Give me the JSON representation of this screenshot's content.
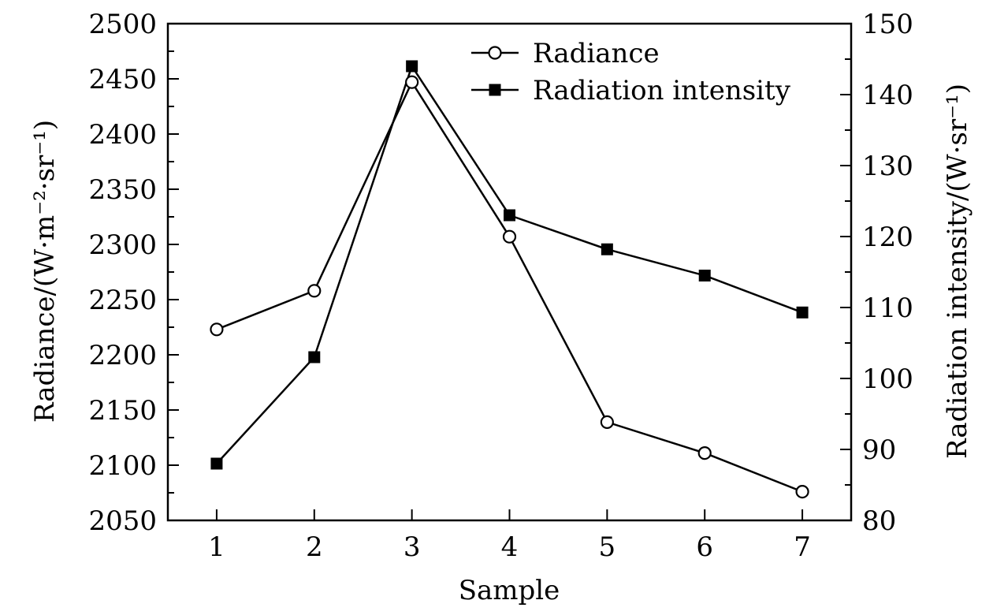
{
  "chart_data": {
    "type": "line",
    "xlabel": "Sample",
    "ylabel_left": "Radiance/(W·m⁻²·sr⁻¹)",
    "ylabel_right": "Radiation intensity/(W·sr⁻¹)",
    "x": [
      1,
      2,
      3,
      4,
      5,
      6,
      7
    ],
    "x_ticks": [
      "1",
      "2",
      "3",
      "4",
      "5",
      "6",
      "7"
    ],
    "xlim": [
      0.5,
      7.5
    ],
    "ylim_left": [
      2050,
      2500
    ],
    "ylim_right": [
      80,
      150
    ],
    "y_ticks_left": [
      "2050",
      "2100",
      "2150",
      "2200",
      "2250",
      "2300",
      "2350",
      "2400",
      "2450",
      "2500"
    ],
    "y_ticks_right": [
      "80",
      "90",
      "100",
      "110",
      "120",
      "130",
      "140",
      "150"
    ],
    "grid": false,
    "legend_position": "top-right",
    "series": [
      {
        "name": "Radiance",
        "axis": "left",
        "marker": "open-circle",
        "values": [
          2223,
          2258,
          2447,
          2307,
          2139,
          2111,
          2076
        ]
      },
      {
        "name": "Radiation intensity",
        "axis": "right",
        "marker": "filled-square",
        "values": [
          88,
          103,
          144,
          123,
          118.2,
          114.5,
          109.3
        ]
      }
    ],
    "colors": {
      "line": "#000000",
      "marker_fill_open": "#ffffff",
      "marker_fill_solid": "#000000"
    }
  }
}
